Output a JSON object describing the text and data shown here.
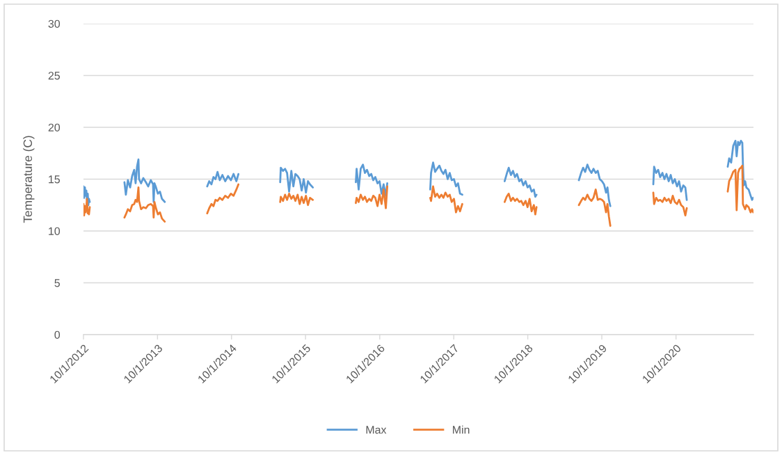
{
  "chart_data": {
    "type": "line",
    "ylabel": "Temperature (C)",
    "x": [
      "2012-10-01",
      "2012-10-04",
      "2012-10-08",
      "2012-10-11",
      "2012-10-15",
      "2012-10-18",
      "2012-10-22",
      "2012-10-25",
      "2012-10-28",
      "2012-11-01",
      "2013-01-15",
      "2013-04-21",
      "2013-04-28",
      "2013-05-08",
      "2013-05-19",
      "2013-05-29",
      "2013-06-08",
      "2013-06-15",
      "2013-06-22",
      "2013-06-29",
      "2013-07-02",
      "2013-07-12",
      "2013-07-23",
      "2013-08-05",
      "2013-08-16",
      "2013-08-29",
      "2013-09-09",
      "2013-09-12",
      "2013-09-16",
      "2013-09-22",
      "2013-10-03",
      "2013-10-13",
      "2013-10-23",
      "2013-11-06",
      "2014-02-01",
      "2014-06-03",
      "2014-06-13",
      "2014-06-24",
      "2014-07-04",
      "2014-07-14",
      "2014-07-24",
      "2014-08-04",
      "2014-08-17",
      "2014-08-31",
      "2014-09-14",
      "2014-09-28",
      "2014-10-11",
      "2014-10-25",
      "2014-11-04",
      "2015-02-01",
      "2015-05-29",
      "2015-06-01",
      "2015-06-12",
      "2015-06-22",
      "2015-07-02",
      "2015-07-12",
      "2015-07-23",
      "2015-08-02",
      "2015-08-12",
      "2015-08-23",
      "2015-09-02",
      "2015-09-12",
      "2015-09-22",
      "2015-10-03",
      "2015-10-13",
      "2015-10-23",
      "2015-11-06",
      "2016-02-01",
      "2016-06-05",
      "2016-06-09",
      "2016-06-19",
      "2016-06-29",
      "2016-07-10",
      "2016-07-20",
      "2016-07-30",
      "2016-08-10",
      "2016-08-20",
      "2016-08-30",
      "2016-09-09",
      "2016-09-20",
      "2016-09-30",
      "2016-10-10",
      "2016-10-20",
      "2016-10-31",
      "2016-11-07",
      "2017-02-01",
      "2017-06-07",
      "2017-06-11",
      "2017-06-21",
      "2017-07-01",
      "2017-07-11",
      "2017-07-22",
      "2017-08-01",
      "2017-08-11",
      "2017-08-21",
      "2017-09-01",
      "2017-09-11",
      "2017-09-21",
      "2017-10-02",
      "2017-10-12",
      "2017-10-22",
      "2017-11-01",
      "2017-11-12",
      "2018-02-01",
      "2018-06-09",
      "2018-06-19",
      "2018-06-29",
      "2018-07-10",
      "2018-07-20",
      "2018-07-30",
      "2018-08-09",
      "2018-08-20",
      "2018-08-30",
      "2018-09-09",
      "2018-09-20",
      "2018-09-30",
      "2018-10-10",
      "2018-10-20",
      "2018-10-31",
      "2018-11-07",
      "2018-11-13",
      "2019-02-01",
      "2019-06-10",
      "2019-06-21",
      "2019-07-01",
      "2019-07-11",
      "2019-07-22",
      "2019-08-01",
      "2019-08-11",
      "2019-08-21",
      "2019-09-01",
      "2019-09-11",
      "2019-09-21",
      "2019-10-02",
      "2019-10-12",
      "2019-10-22",
      "2019-10-29",
      "2019-11-05",
      "2019-11-12",
      "2020-02-01",
      "2020-06-11",
      "2020-06-15",
      "2020-06-25",
      "2020-07-05",
      "2020-07-15",
      "2020-07-26",
      "2020-08-05",
      "2020-08-15",
      "2020-08-26",
      "2020-09-05",
      "2020-09-15",
      "2020-09-25",
      "2020-10-06",
      "2020-10-16",
      "2020-10-26",
      "2020-11-06",
      "2020-11-16",
      "2020-11-23",
      "2021-02-01",
      "2021-06-13",
      "2021-06-20",
      "2021-06-30",
      "2021-07-10",
      "2021-07-21",
      "2021-07-27",
      "2021-08-03",
      "2021-08-10",
      "2021-08-17",
      "2021-08-24",
      "2021-08-27",
      "2021-08-31",
      "2021-09-07",
      "2021-09-13",
      "2021-09-24",
      "2021-10-04",
      "2021-10-11",
      "2021-10-17"
    ],
    "series": [
      {
        "name": "Max",
        "color": "#5b9bd5",
        "values": [
          14.3,
          13.2,
          14.2,
          13.4,
          13.9,
          13.0,
          13.6,
          12.5,
          13.1,
          12.8,
          null,
          14.7,
          13.5,
          14.9,
          14.2,
          15.3,
          15.9,
          14.6,
          16.2,
          16.9,
          15.0,
          14.6,
          15.1,
          14.7,
          14.3,
          14.9,
          14.5,
          12.8,
          14.6,
          14.3,
          13.6,
          13.8,
          13.1,
          12.8,
          null,
          14.3,
          14.8,
          14.5,
          15.2,
          15.0,
          15.7,
          14.9,
          15.4,
          14.8,
          15.3,
          14.9,
          15.5,
          14.8,
          15.5,
          null,
          14.7,
          16.1,
          15.8,
          16.0,
          15.6,
          13.8,
          15.8,
          14.3,
          15.5,
          15.3,
          15.0,
          13.9,
          15.0,
          13.7,
          14.8,
          14.5,
          14.2,
          null,
          14.7,
          16.0,
          14.0,
          16.0,
          16.4,
          15.6,
          15.9,
          15.3,
          15.5,
          14.9,
          15.2,
          14.6,
          14.8,
          13.6,
          14.5,
          13.4,
          14.6,
          null,
          14.0,
          15.6,
          16.6,
          15.7,
          16.0,
          16.3,
          15.8,
          15.5,
          15.9,
          15.0,
          15.6,
          14.9,
          15.0,
          14.3,
          14.6,
          13.6,
          13.5,
          null,
          14.8,
          15.5,
          16.1,
          15.4,
          15.8,
          15.2,
          15.5,
          14.8,
          15.0,
          14.4,
          14.8,
          14.2,
          14.4,
          13.8,
          14.0,
          13.3,
          13.5,
          null,
          14.9,
          15.6,
          16.1,
          15.7,
          16.4,
          15.9,
          15.6,
          16.0,
          15.6,
          15.8,
          15.0,
          14.8,
          14.5,
          13.7,
          14.2,
          13.0,
          12.4,
          null,
          14.5,
          16.2,
          15.6,
          15.9,
          15.2,
          15.6,
          15.0,
          15.5,
          14.8,
          15.4,
          14.6,
          15.0,
          14.3,
          14.8,
          13.8,
          14.4,
          14.2,
          13.0,
          null,
          16.2,
          17.0,
          16.6,
          18.2,
          18.7,
          17.2,
          18.6,
          18.3,
          18.7,
          18.5,
          16.4,
          14.4,
          14.8,
          14.2,
          14.0,
          13.4,
          13.0,
          13.2
        ]
      },
      {
        "name": "Min",
        "color": "#ed7d31",
        "values": [
          12.6,
          11.5,
          12.4,
          11.8,
          12.3,
          13.1,
          11.7,
          12.0,
          11.6,
          12.3,
          null,
          11.3,
          11.6,
          12.1,
          11.9,
          12.5,
          12.6,
          13.0,
          12.8,
          14.2,
          12.9,
          12.1,
          12.3,
          12.2,
          12.5,
          12.6,
          12.4,
          11.3,
          12.8,
          12.3,
          11.6,
          11.8,
          11.2,
          10.9,
          null,
          11.7,
          12.2,
          12.6,
          12.4,
          13.0,
          12.9,
          13.2,
          13.0,
          13.4,
          13.2,
          13.6,
          13.4,
          14.0,
          14.5,
          null,
          12.8,
          13.3,
          12.9,
          13.5,
          13.0,
          13.6,
          13.1,
          13.4,
          12.9,
          13.5,
          12.6,
          13.3,
          12.7,
          13.4,
          12.5,
          13.2,
          13.0,
          null,
          12.7,
          13.2,
          12.8,
          13.5,
          13.0,
          13.3,
          12.8,
          13.1,
          12.9,
          13.4,
          13.2,
          12.4,
          13.5,
          12.6,
          14.0,
          12.2,
          14.3,
          null,
          13.2,
          12.9,
          14.3,
          13.3,
          13.6,
          13.2,
          13.5,
          13.2,
          13.7,
          13.3,
          13.5,
          12.8,
          13.1,
          11.8,
          12.4,
          11.9,
          12.6,
          null,
          12.8,
          13.3,
          13.6,
          12.9,
          13.2,
          12.9,
          13.1,
          12.8,
          12.9,
          12.5,
          12.9,
          12.3,
          13.1,
          11.9,
          12.5,
          11.6,
          12.3,
          null,
          12.5,
          12.9,
          13.2,
          13.0,
          13.5,
          13.1,
          12.9,
          13.2,
          14.0,
          13.0,
          13.1,
          13.0,
          12.8,
          11.8,
          12.6,
          11.4,
          10.5,
          null,
          13.7,
          12.6,
          13.2,
          12.9,
          13.0,
          12.8,
          13.2,
          12.9,
          13.1,
          12.7,
          13.4,
          12.8,
          12.6,
          13.0,
          12.5,
          12.3,
          11.5,
          12.2,
          null,
          13.8,
          14.8,
          15.2,
          15.7,
          15.9,
          12.0,
          15.6,
          16.0,
          16.1,
          16.3,
          12.6,
          12.4,
          12.1,
          12.5,
          12.3,
          11.8,
          12.1,
          11.8
        ]
      }
    ],
    "xlim": [
      "2012-10-01",
      "2021-10-18"
    ],
    "xticks": [
      {
        "value": "2012-10-01",
        "label": "10/1/2012"
      },
      {
        "value": "2013-10-01",
        "label": "10/1/2013"
      },
      {
        "value": "2014-10-01",
        "label": "10/1/2014"
      },
      {
        "value": "2015-10-01",
        "label": "10/1/2015"
      },
      {
        "value": "2016-10-01",
        "label": "10/1/2016"
      },
      {
        "value": "2017-10-01",
        "label": "10/1/2017"
      },
      {
        "value": "2018-10-01",
        "label": "10/1/2018"
      },
      {
        "value": "2019-10-01",
        "label": "10/1/2019"
      },
      {
        "value": "2020-10-01",
        "label": "10/1/2020"
      }
    ],
    "ylim": [
      0,
      30
    ],
    "yticks": [
      0,
      5,
      10,
      15,
      20,
      25,
      30
    ],
    "grid": "y",
    "legend": "bottom",
    "line_style": "solid",
    "marker": "none"
  }
}
